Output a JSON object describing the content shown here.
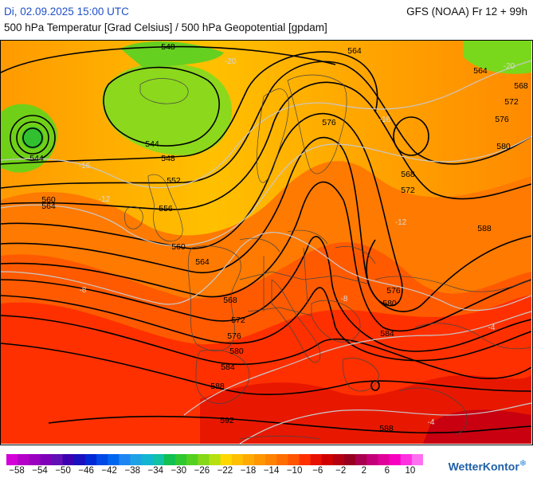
{
  "header": {
    "date": "Di, 02.09.2025 15:00 UTC",
    "model": "GFS (NOAA) Fr 12 + 99h",
    "subtitle": "500 hPa Temperatur [Grad Celsius] / 500 hPa Geopotential [gpdam]"
  },
  "logo": {
    "text": "WetterKontor",
    "icon": "snowflake-icon"
  },
  "legend": {
    "colors": [
      "#d400d8",
      "#b400c8",
      "#9a00c0",
      "#7d00b8",
      "#6010b4",
      "#3c00b0",
      "#1a10c0",
      "#0028d6",
      "#0048e8",
      "#0066f0",
      "#1e86f2",
      "#1ea2e6",
      "#12b6d2",
      "#10c2a6",
      "#10c050",
      "#30c830",
      "#56d020",
      "#86d818",
      "#b6e010",
      "#ffd800",
      "#ffc000",
      "#ffaa00",
      "#ff9600",
      "#ff8200",
      "#ff6c00",
      "#ff5400",
      "#ff3000",
      "#e81000",
      "#d00000",
      "#b40010",
      "#980020",
      "#aa0050",
      "#c40078",
      "#e0009a",
      "#f800c0",
      "#ff30e0",
      "#ff70f0"
    ],
    "tick_labels": [
      "−58",
      "−54",
      "−50",
      "−46",
      "−42",
      "−38",
      "−34",
      "−30",
      "−26",
      "−22",
      "−18",
      "−14",
      "−10",
      "−6",
      "−2",
      "2",
      "6",
      "10"
    ]
  },
  "map": {
    "contour_labels": [
      "548",
      "564",
      "564",
      "568",
      "572",
      "576",
      "580",
      "544",
      "548",
      "552",
      "544",
      "556",
      "560",
      "564",
      "560",
      "564",
      "568",
      "572",
      "576",
      "580",
      "584",
      "588",
      "592",
      "576",
      "568",
      "572",
      "576",
      "580",
      "584",
      "588",
      "588"
    ],
    "isotherm_labels": [
      "-20",
      "-20",
      "-16",
      "-16",
      "-12",
      "-12",
      "-8",
      "-8",
      "-4",
      "-4"
    ]
  }
}
